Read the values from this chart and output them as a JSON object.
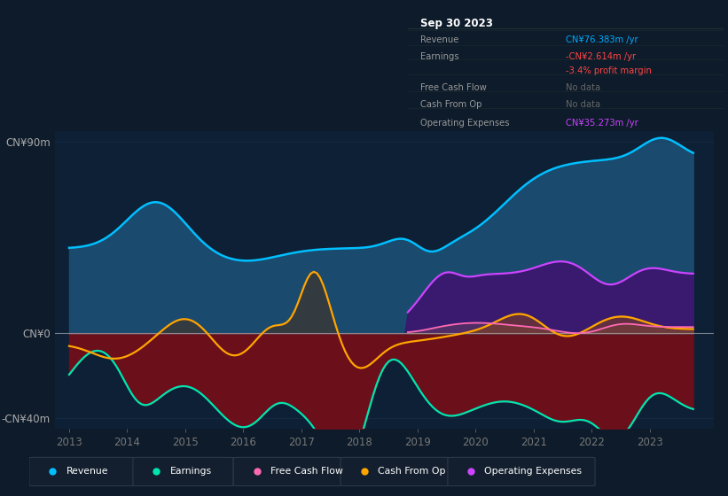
{
  "bg_color": "#0d1b2a",
  "plot_bg_color": "#0d2035",
  "revenue_color": "#00bfff",
  "revenue_fill": "#1a4a6e",
  "earnings_color": "#00e5b0",
  "earnings_fill_neg": "#6b0f1a",
  "cash_from_op_color": "#ffa500",
  "cash_from_op_fill": "#404040",
  "op_exp_color": "#cc44ff",
  "op_exp_fill": "#3d1570",
  "free_cash_color": "#ff69b4",
  "free_cash_fill": "#884466",
  "zero_line_color": "#bbbbbb",
  "grid_color": "#1e3050",
  "ylim": [
    -45,
    95
  ],
  "xlim": [
    2012.75,
    2024.1
  ],
  "yticks_pos": [
    -40,
    0,
    90
  ],
  "ytick_labels": [
    "-CN¥40m",
    "CN¥0",
    "CN¥90m"
  ],
  "xticks": [
    2013,
    2014,
    2015,
    2016,
    2017,
    2018,
    2019,
    2020,
    2021,
    2022,
    2023
  ],
  "legend_bg": "#131f2e",
  "legend_border": "#2a3a4a"
}
